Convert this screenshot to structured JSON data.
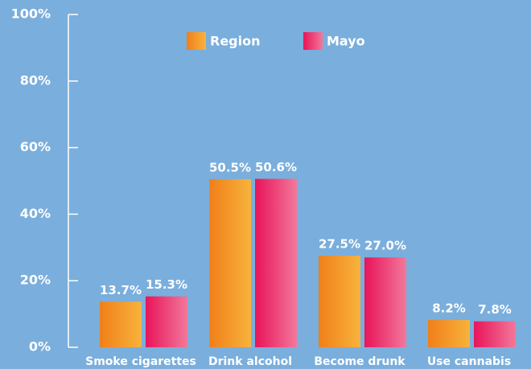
{
  "chart_data": {
    "type": "bar",
    "categories": [
      "Smoke cigarettes",
      "Drink alcohol",
      "Become drunk",
      "Use cannabis"
    ],
    "series": [
      {
        "name": "Region",
        "color": "#f28c1e",
        "values": [
          13.7,
          50.5,
          27.5,
          8.2
        ],
        "value_labels": [
          "13.7%",
          "50.5%",
          "27.5%",
          "8.2%"
        ]
      },
      {
        "name": "Mayo",
        "color": "#ea1e5e",
        "values": [
          15.3,
          50.6,
          27.0,
          7.8
        ],
        "value_labels": [
          "15.3%",
          "50.6%",
          "27.0%",
          "7.8%"
        ]
      }
    ],
    "ylim": [
      0,
      100
    ],
    "yticks": [
      {
        "value": 0,
        "label": "0%"
      },
      {
        "value": 20,
        "label": "20%"
      },
      {
        "value": 40,
        "label": "40%"
      },
      {
        "value": 60,
        "label": "60%"
      },
      {
        "value": 80,
        "label": "80%"
      },
      {
        "value": 100,
        "label": "100%"
      }
    ],
    "legend": "top"
  }
}
